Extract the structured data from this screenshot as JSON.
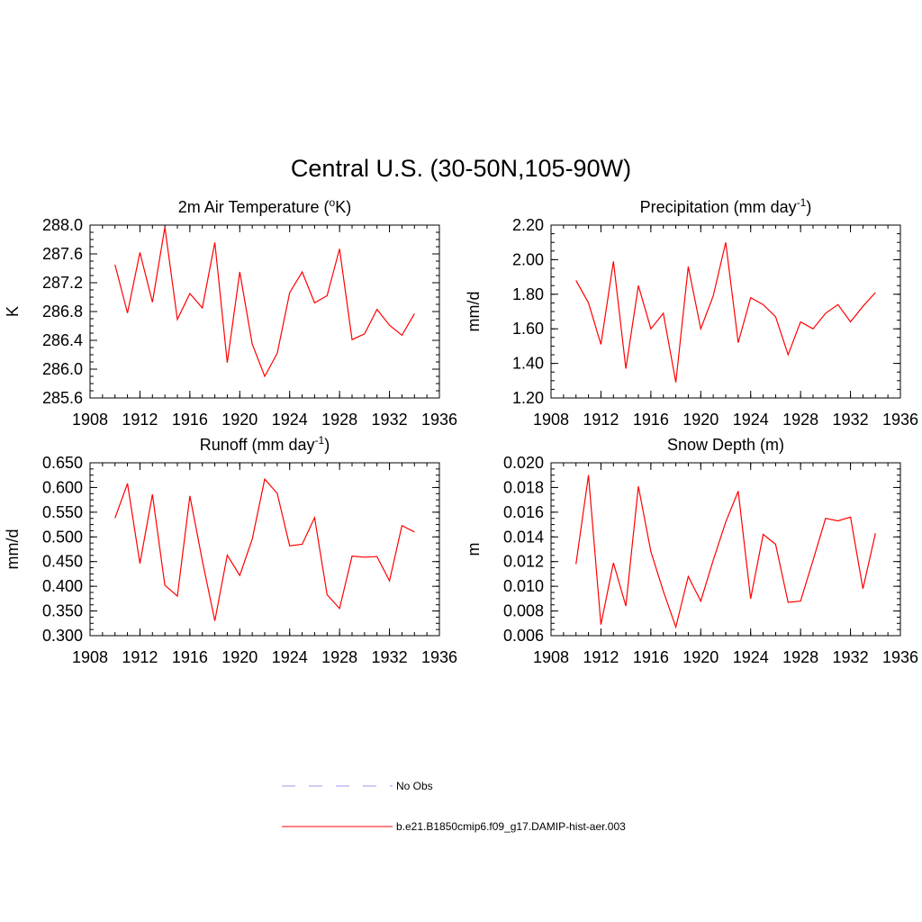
{
  "main_title": "Central U.S. (30-50N,105-90W)",
  "legend": {
    "entries": [
      {
        "label": "No Obs",
        "color": "#9999ee",
        "dash": true
      },
      {
        "label": "b.e21.B1850cmip6.f09_g17.DAMIP-hist-aer.003",
        "color": "#ff0000",
        "dash": false
      }
    ]
  },
  "chart_data": [
    {
      "type": "line",
      "title": "2m Air Temperature (",
      "title_sup": "o",
      "title_end": "K)",
      "ylabel": "K",
      "xlim": [
        1908,
        1936
      ],
      "ylim": [
        285.6,
        288.0
      ],
      "xticks": [
        "1908",
        "1912",
        "1916",
        "1920",
        "1924",
        "1928",
        "1932",
        "1936"
      ],
      "yticks": [
        "285.6",
        "286.0",
        "286.4",
        "286.8",
        "287.2",
        "287.6",
        "288.0"
      ],
      "series": [
        {
          "color": "#ff0000",
          "x": [
            1910,
            1911,
            1912,
            1913,
            1914,
            1915,
            1916,
            1917,
            1918,
            1919,
            1920,
            1921,
            1922,
            1923,
            1924,
            1925,
            1926,
            1927,
            1928,
            1929,
            1930,
            1931,
            1932,
            1933,
            1934
          ],
          "values": [
            287.45,
            286.78,
            287.62,
            286.93,
            287.97,
            286.69,
            287.05,
            286.85,
            287.76,
            286.09,
            287.35,
            286.35,
            285.9,
            286.22,
            287.06,
            287.35,
            286.92,
            287.02,
            287.67,
            286.41,
            286.49,
            286.83,
            286.61,
            286.47,
            286.77
          ]
        }
      ]
    },
    {
      "type": "line",
      "title": "Precipitation (mm day",
      "title_sup": "-1",
      "title_end": ")",
      "ylabel": "mm/d",
      "xlim": [
        1908,
        1936
      ],
      "ylim": [
        1.2,
        2.2
      ],
      "xticks": [
        "1908",
        "1912",
        "1916",
        "1920",
        "1924",
        "1928",
        "1932",
        "1936"
      ],
      "yticks": [
        "1.20",
        "1.40",
        "1.60",
        "1.80",
        "2.00",
        "2.20"
      ],
      "series": [
        {
          "color": "#ff0000",
          "x": [
            1910,
            1911,
            1912,
            1913,
            1914,
            1915,
            1916,
            1917,
            1918,
            1919,
            1920,
            1921,
            1922,
            1923,
            1924,
            1925,
            1926,
            1927,
            1928,
            1929,
            1930,
            1931,
            1932,
            1933,
            1934
          ],
          "values": [
            1.88,
            1.75,
            1.51,
            1.99,
            1.37,
            1.85,
            1.6,
            1.69,
            1.29,
            1.96,
            1.6,
            1.79,
            2.1,
            1.52,
            1.78,
            1.74,
            1.67,
            1.45,
            1.64,
            1.6,
            1.69,
            1.74,
            1.64,
            1.73,
            1.81
          ]
        }
      ]
    },
    {
      "type": "line",
      "title": "Runoff (mm day",
      "title_sup": "-1",
      "title_end": ")",
      "ylabel": "mm/d",
      "xlim": [
        1908,
        1936
      ],
      "ylim": [
        0.3,
        0.65
      ],
      "xticks": [
        "1908",
        "1912",
        "1916",
        "1920",
        "1924",
        "1928",
        "1932",
        "1936"
      ],
      "yticks": [
        "0.300",
        "0.350",
        "0.400",
        "0.450",
        "0.500",
        "0.550",
        "0.600",
        "0.650"
      ],
      "series": [
        {
          "color": "#ff0000",
          "x": [
            1910,
            1911,
            1912,
            1913,
            1914,
            1915,
            1916,
            1917,
            1918,
            1919,
            1920,
            1921,
            1922,
            1923,
            1924,
            1925,
            1926,
            1927,
            1928,
            1929,
            1930,
            1931,
            1932,
            1933,
            1934
          ],
          "values": [
            0.538,
            0.608,
            0.446,
            0.586,
            0.402,
            0.38,
            0.583,
            0.452,
            0.33,
            0.463,
            0.422,
            0.495,
            0.617,
            0.588,
            0.482,
            0.485,
            0.539,
            0.383,
            0.355,
            0.461,
            0.459,
            0.46,
            0.411,
            0.523,
            0.51
          ]
        }
      ]
    },
    {
      "type": "line",
      "title": "Snow Depth (m)",
      "title_sup": "",
      "title_end": "",
      "ylabel": "m",
      "xlim": [
        1908,
        1936
      ],
      "ylim": [
        0.006,
        0.02
      ],
      "xticks": [
        "1908",
        "1912",
        "1916",
        "1920",
        "1924",
        "1928",
        "1932",
        "1936"
      ],
      "yticks": [
        "0.006",
        "0.008",
        "0.010",
        "0.012",
        "0.014",
        "0.016",
        "0.018",
        "0.020"
      ],
      "series": [
        {
          "color": "#ff0000",
          "x": [
            1910,
            1911,
            1912,
            1913,
            1914,
            1915,
            1916,
            1917,
            1918,
            1919,
            1920,
            1921,
            1922,
            1923,
            1924,
            1925,
            1926,
            1927,
            1928,
            1929,
            1930,
            1931,
            1932,
            1933,
            1934
          ],
          "values": [
            0.0118,
            0.019,
            0.0069,
            0.0119,
            0.0084,
            0.0181,
            0.0128,
            0.0096,
            0.0067,
            0.0108,
            0.0088,
            0.0121,
            0.0152,
            0.0177,
            0.009,
            0.0142,
            0.0134,
            0.0087,
            0.0088,
            0.0121,
            0.0155,
            0.0153,
            0.0156,
            0.0098,
            0.0143
          ]
        }
      ]
    }
  ]
}
